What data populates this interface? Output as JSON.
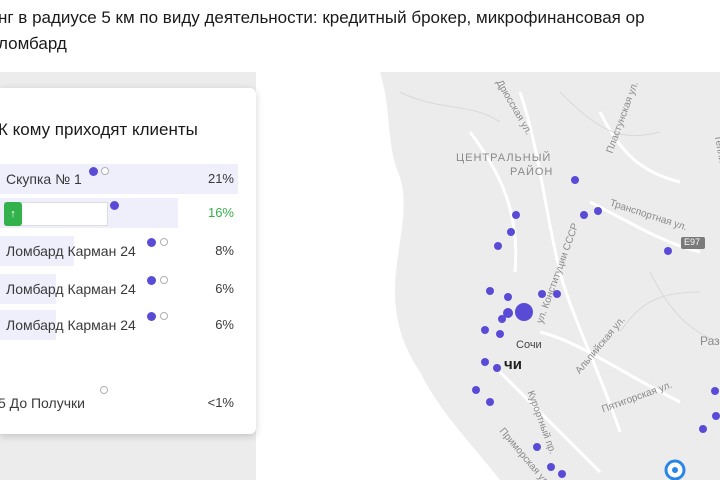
{
  "header": {
    "line1": "нг в радиусе 5 км по виду деятельности: кредитный брокер, микрофинансовая ор",
    "line2": "ломбард"
  },
  "panel": {
    "title": "К кому приходят клиенты",
    "rows": [
      {
        "label": "Скупка № 1",
        "percent": "21%",
        "share": 0.21
      },
      {
        "label": "",
        "percent": "16%",
        "share": 0.16,
        "button_glyph": "↑"
      },
      {
        "label": "Ломбард Карман 24",
        "percent": "8%",
        "share": 0.08
      },
      {
        "label": "Ломбард Карман 24",
        "percent": "6%",
        "share": 0.06
      },
      {
        "label": "Ломбард Карман 24",
        "percent": "6%",
        "share": 0.06
      },
      {
        "label": "5  До Получки",
        "percent": "<1%",
        "share": 0.005
      }
    ]
  },
  "map": {
    "labels": {
      "central_district": "ЦЕНТРАЛЬНЫЙ",
      "district": "РАЙОН",
      "sochi": "Сочи",
      "sochi_bold": "чи",
      "e97": "E97",
      "street_drinskaya": "Дрюсская ул.",
      "street_plastunskaya": "Пластунская ул.",
      "street_transportnaya": "Транспортная ул.",
      "street_konstitutsii": "ул. Конституции СССР",
      "street_alpiyskaya": "Альпийская ул.",
      "street_pyatigorskaya": "Пятигорская ул.",
      "street_kurortny": "Курортный пр.",
      "street_primorskaya": "Приморская ул.",
      "street_teplichnaya": "Тепличная ул.",
      "district_raz": "Раз"
    },
    "colors": {
      "marker": "#5a4bd6",
      "sea": "#ffffff",
      "land": "#ececec",
      "pct_highlight": "#33b24b"
    }
  }
}
